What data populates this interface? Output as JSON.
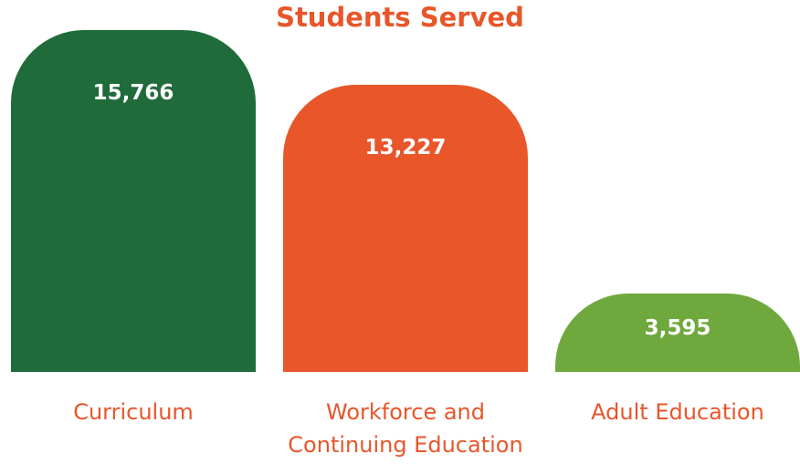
{
  "chart_data": {
    "type": "bar",
    "title": "Students Served",
    "categories": [
      "Curriculum",
      "Workforce and Continuing Education",
      "Adult Education"
    ],
    "values": [
      15766,
      13227,
      3595
    ],
    "value_labels": [
      "15,766",
      "13,227",
      "3,595"
    ],
    "colors": [
      "#206b3a",
      "#e8562a",
      "#6fa83d"
    ]
  }
}
